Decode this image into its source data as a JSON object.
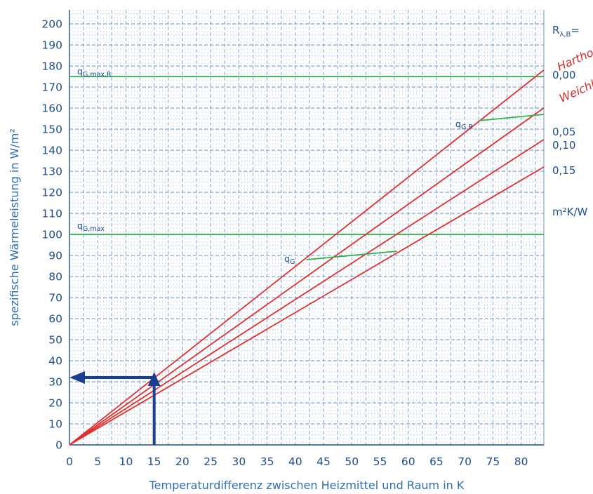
{
  "chart_data": {
    "type": "line",
    "xlabel": "Temperaturdifferenz zwischen Heizmittel und Raum in K",
    "ylabel": "spezifische Wärmeleistung in W/m²",
    "xlim": [
      0,
      84
    ],
    "ylim": [
      0,
      207
    ],
    "x_ticks": [
      "0",
      "5",
      "10",
      "15",
      "20",
      "25",
      "30",
      "35",
      "40",
      "45",
      "50",
      "55",
      "60",
      "65",
      "70",
      "75",
      "80"
    ],
    "y_ticks": [
      "0",
      "10",
      "20",
      "30",
      "40",
      "50",
      "60",
      "70",
      "80",
      "90",
      "100",
      "110",
      "120",
      "130",
      "140",
      "150",
      "160",
      "170",
      "180",
      "190",
      "200"
    ],
    "grid": true,
    "colors": {
      "series": "#e0302c",
      "limit": "#2eb04a",
      "arrow": "#1a3f8f",
      "grid": "#3a6fc0",
      "text": "#1f4e8c"
    },
    "series": [
      {
        "name": "0,00",
        "x": [
          0,
          84
        ],
        "y": [
          0,
          178
        ]
      },
      {
        "name": "0,05",
        "x": [
          0,
          84
        ],
        "y": [
          0,
          160
        ]
      },
      {
        "name": "0,10",
        "x": [
          0,
          84
        ],
        "y": [
          0,
          145
        ]
      },
      {
        "name": "0,15",
        "x": [
          0,
          84
        ],
        "y": [
          0,
          132
        ]
      }
    ],
    "limit_lines": [
      {
        "label_main": "q",
        "label_sub": "G,max,R",
        "y": 175
      },
      {
        "label_main": "q",
        "label_sub": "G,max",
        "y": 100
      }
    ],
    "limit_curves": [
      {
        "label_main": "q",
        "label_sub": "G,R",
        "x": [
          72.5,
          84
        ],
        "y": [
          154,
          157
        ]
      },
      {
        "label_main": "q",
        "label_sub": "G",
        "x": [
          42,
          58
        ],
        "y": [
          88,
          92
        ]
      }
    ],
    "example_arrow": {
      "x": 15,
      "y": 32
    },
    "legend": {
      "title_main": "R",
      "title_sub": "λ,B",
      "title_suffix": "=",
      "values": [
        "0,00",
        "0,05",
        "0,10",
        "0,15"
      ],
      "unit": "m²K/W"
    },
    "annotations": {
      "hardwood": "Hartholz",
      "softwood": "Weichholz"
    }
  }
}
